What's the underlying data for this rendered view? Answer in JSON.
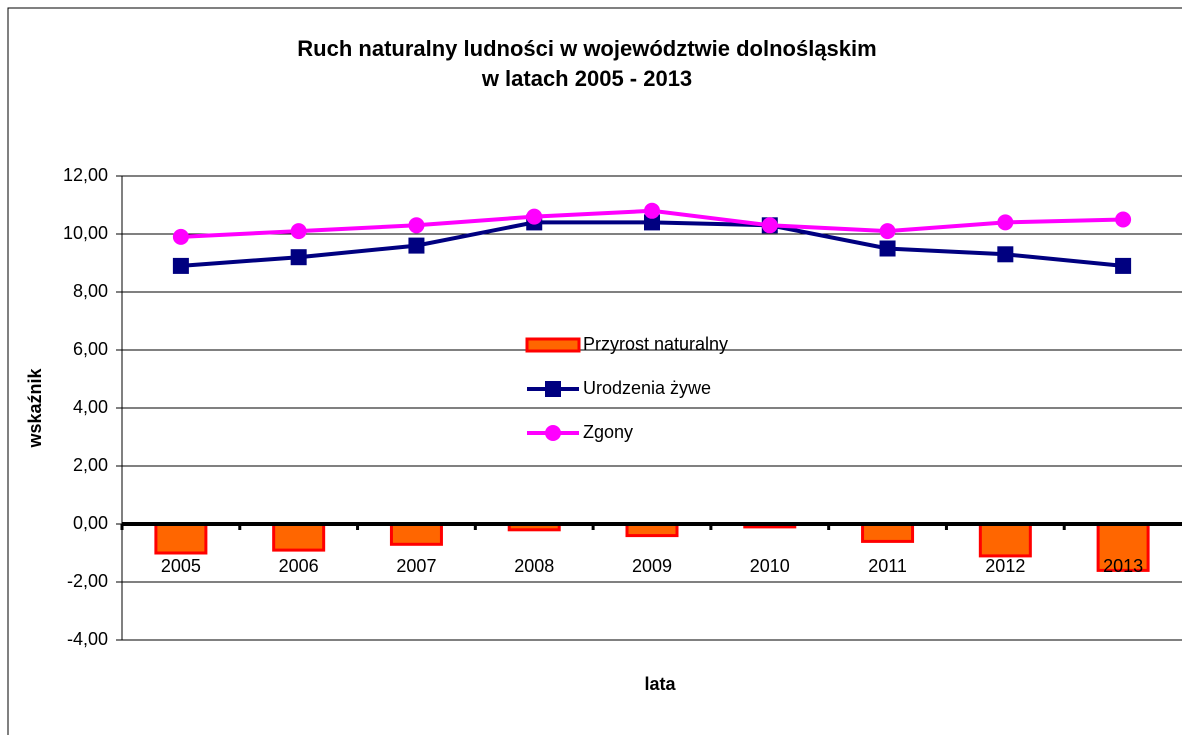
{
  "chart_data": {
    "type": "bar-line",
    "title": "Ruch naturalny ludności w województwie dolnośląskim",
    "subtitle": "w latach 2005 - 2013",
    "x_label": "lata",
    "y_label": "wskaźnik",
    "categories": [
      "2005",
      "2006",
      "2007",
      "2008",
      "2009",
      "2010",
      "2011",
      "2012",
      "2013"
    ],
    "series": [
      {
        "name": "Przyrost naturalny",
        "type": "bar",
        "color": "#ff6600",
        "edge_color": "#ff0000",
        "values": [
          -1.0,
          -0.9,
          -0.7,
          -0.2,
          -0.4,
          -0.1,
          -0.6,
          -1.1,
          -1.6
        ]
      },
      {
        "name": "Urodzenia żywe",
        "type": "line",
        "marker": "square",
        "color": "#000080",
        "values": [
          8.9,
          9.2,
          9.6,
          10.4,
          10.4,
          10.3,
          9.5,
          9.3,
          8.9
        ]
      },
      {
        "name": "Zgony",
        "type": "line",
        "marker": "circle",
        "color": "#ff00ff",
        "values": [
          9.9,
          10.1,
          10.3,
          10.6,
          10.8,
          10.3,
          10.1,
          10.4,
          10.5
        ]
      }
    ],
    "ylim": [
      -4,
      12
    ],
    "yticks": [
      {
        "value": -4,
        "label": "-4,00"
      },
      {
        "value": -2,
        "label": "-2,00"
      },
      {
        "value": 0,
        "label": "0,00"
      },
      {
        "value": 2,
        "label": "2,00"
      },
      {
        "value": 4,
        "label": "4,00"
      },
      {
        "value": 6,
        "label": "6,00"
      },
      {
        "value": 8,
        "label": "8,00"
      },
      {
        "value": 10,
        "label": "10,00"
      },
      {
        "value": 12,
        "label": "12,00"
      }
    ],
    "grid": true,
    "legend": "center"
  }
}
